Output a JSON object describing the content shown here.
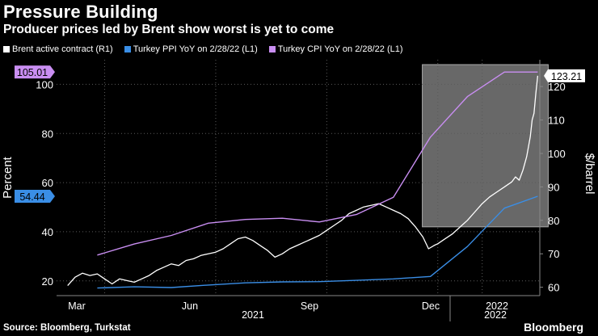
{
  "header": {
    "title": "Pressure Building",
    "subtitle": "Producer prices led by Brent show worst is yet to come"
  },
  "footer": {
    "source": "Source: Bloomberg, Turkstat",
    "brand": "Bloomberg"
  },
  "colors": {
    "background": "#000000",
    "brent": "#ffffff",
    "ppi": "#3a8ee6",
    "cpi": "#c98ef2",
    "grid": "#5a5a5a",
    "highlight": "#7a7a7a"
  },
  "chart_data": {
    "type": "line",
    "title": "Pressure Building",
    "subtitle": "Producer prices led by Brent show worst is yet to come",
    "ylabel_left": "Percent",
    "ylabel_right": "$/barrel",
    "y_left_range": [
      14,
      110
    ],
    "y_right_range": [
      57.5,
      128
    ],
    "y_left_ticks": [
      20,
      40,
      60,
      80,
      100
    ],
    "y_right_ticks": [
      60,
      70,
      80,
      90,
      100,
      110,
      120
    ],
    "x_tick_labels": [
      "Mar",
      "Jun",
      "Sep",
      "Dec",
      "2022"
    ],
    "x_year_labels": [
      "2021",
      "2022"
    ],
    "grid": true,
    "legend_position": "top-left",
    "highlight_region": {
      "start_month": 11.8,
      "end_month": 14.7,
      "ylow_percent": 42,
      "yhigh_percent": 125
    },
    "series": [
      {
        "name": "Brent active contract (R1)",
        "axis": "right",
        "last_value_label": "123.21",
        "points": [
          [
            2.0,
            60.5
          ],
          [
            2.2,
            63.0
          ],
          [
            2.4,
            64.2
          ],
          [
            2.6,
            63.5
          ],
          [
            2.8,
            64.0
          ],
          [
            3.0,
            62.5
          ],
          [
            3.2,
            61.0
          ],
          [
            3.4,
            62.5
          ],
          [
            3.6,
            62.0
          ],
          [
            3.8,
            61.5
          ],
          [
            4.0,
            62.5
          ],
          [
            4.2,
            63.5
          ],
          [
            4.4,
            65.0
          ],
          [
            4.6,
            66.0
          ],
          [
            4.8,
            67.0
          ],
          [
            5.0,
            66.5
          ],
          [
            5.2,
            68.0
          ],
          [
            5.4,
            68.5
          ],
          [
            5.6,
            69.5
          ],
          [
            5.8,
            70.0
          ],
          [
            6.0,
            70.5
          ],
          [
            6.2,
            71.5
          ],
          [
            6.4,
            73.0
          ],
          [
            6.6,
            74.5
          ],
          [
            6.8,
            75.0
          ],
          [
            7.0,
            74.0
          ],
          [
            7.2,
            72.5
          ],
          [
            7.4,
            71.0
          ],
          [
            7.6,
            69.0
          ],
          [
            7.8,
            70.0
          ],
          [
            8.0,
            71.5
          ],
          [
            8.2,
            72.5
          ],
          [
            8.4,
            73.5
          ],
          [
            8.6,
            74.5
          ],
          [
            8.8,
            75.5
          ],
          [
            9.0,
            77.0
          ],
          [
            9.2,
            78.5
          ],
          [
            9.4,
            80.0
          ],
          [
            9.6,
            82.0
          ],
          [
            9.8,
            83.0
          ],
          [
            10.0,
            84.0
          ],
          [
            10.2,
            84.5
          ],
          [
            10.4,
            85.0
          ],
          [
            10.6,
            84.0
          ],
          [
            10.8,
            83.0
          ],
          [
            11.0,
            82.0
          ],
          [
            11.2,
            80.5
          ],
          [
            11.4,
            78.0
          ],
          [
            11.6,
            75.0
          ],
          [
            11.75,
            71.5
          ],
          [
            11.9,
            72.5
          ],
          [
            12.0,
            73.0
          ],
          [
            12.2,
            74.5
          ],
          [
            12.4,
            76.0
          ],
          [
            12.6,
            78.0
          ],
          [
            12.8,
            80.0
          ],
          [
            13.0,
            82.5
          ],
          [
            13.2,
            85.0
          ],
          [
            13.4,
            87.0
          ],
          [
            13.6,
            88.5
          ],
          [
            13.8,
            90.0
          ],
          [
            14.0,
            91.5
          ],
          [
            14.1,
            93.0
          ],
          [
            14.2,
            92.0
          ],
          [
            14.3,
            95.0
          ],
          [
            14.4,
            99.0
          ],
          [
            14.5,
            105.0
          ],
          [
            14.55,
            110.0
          ],
          [
            14.6,
            112.0
          ],
          [
            14.65,
            118.0
          ],
          [
            14.7,
            123.21
          ]
        ]
      },
      {
        "name": "Turkey PPI YoY on 2/28/22 (L1)",
        "axis": "left",
        "last_value_label": "54.44",
        "points": [
          [
            2.8,
            17.1
          ],
          [
            3.8,
            17.6
          ],
          [
            4.8,
            17.3
          ],
          [
            5.8,
            18.3
          ],
          [
            6.8,
            19.2
          ],
          [
            7.8,
            19.6
          ],
          [
            8.8,
            19.7
          ],
          [
            9.8,
            20.2
          ],
          [
            10.8,
            20.8
          ],
          [
            11.8,
            21.8
          ],
          [
            12.8,
            34.0
          ],
          [
            13.8,
            49.6
          ],
          [
            14.7,
            54.44
          ]
        ]
      },
      {
        "name": "Turkey CPI YoY on 2/28/22 (L1)",
        "axis": "left",
        "last_value_label": "105.01",
        "points": [
          [
            2.8,
            30.5
          ],
          [
            3.8,
            35.0
          ],
          [
            4.8,
            38.5
          ],
          [
            5.8,
            43.5
          ],
          [
            6.8,
            45.0
          ],
          [
            7.8,
            45.5
          ],
          [
            8.8,
            44.0
          ],
          [
            9.8,
            47.0
          ],
          [
            10.8,
            54.0
          ],
          [
            11.8,
            78.5
          ],
          [
            12.8,
            95.0
          ],
          [
            13.8,
            105.01
          ],
          [
            14.7,
            105.01
          ]
        ]
      }
    ]
  }
}
